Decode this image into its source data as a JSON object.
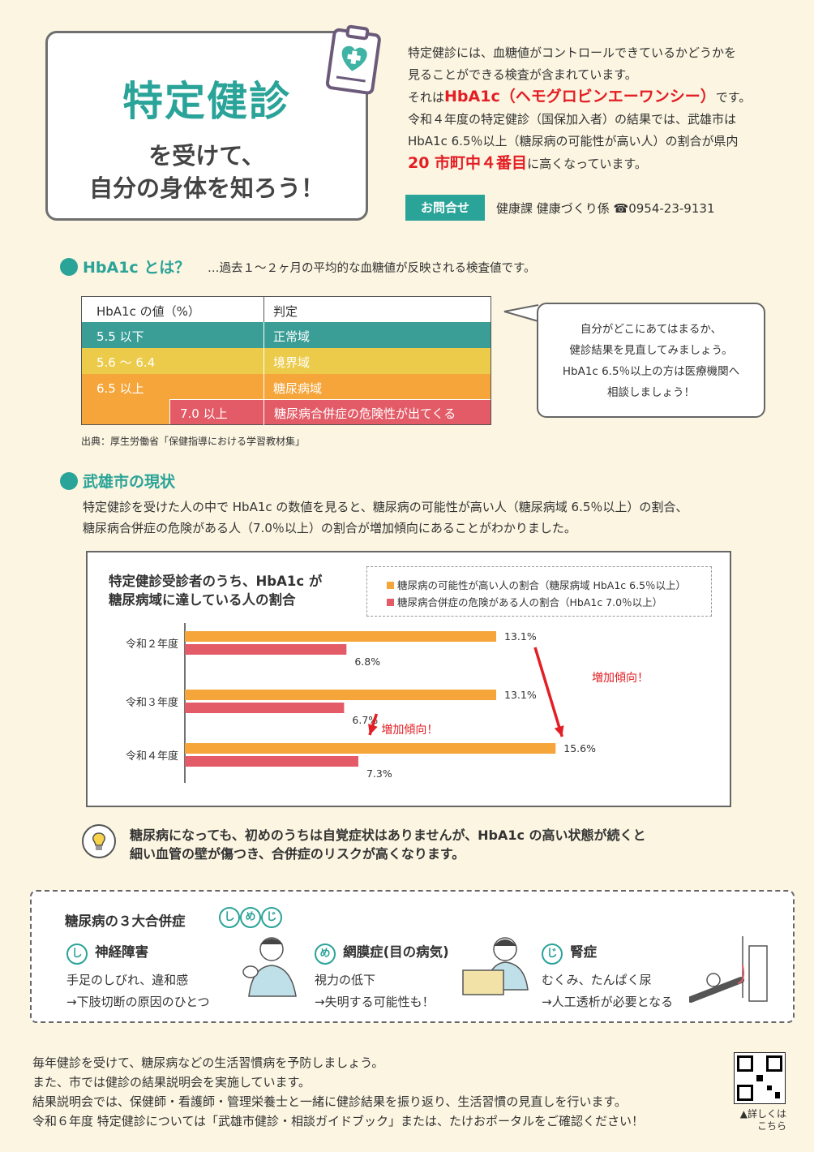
{
  "header": {
    "title_main": "特定健診",
    "title_sub1": "を受けて、",
    "title_sub2": "自分の身体を知ろう！",
    "intro_line1": "特定健診には、血糖値がコントロールできているかどうかを",
    "intro_line2": "見ることができる検査が含まれています。",
    "intro_line3_pre": "それは",
    "intro_line3_red": "HbA1c（ヘモグロビンエーワンシー）",
    "intro_line3_post": "です。",
    "intro_line4": "令和４年度の特定健診（国保加入者）の結果では、武雄市は",
    "intro_line5": "HbA1c 6.5％以上（糖尿病の可能性が高い人）の割合が県内",
    "intro_line6_red": "20 市町中４番目",
    "intro_line6_post": "に高くなっています。",
    "contact_label": "お問合せ",
    "contact_text": "健康課 健康づくり係 ☎0954-23-9131"
  },
  "hba1c": {
    "section_title": "HbA1c とは？",
    "section_desc": "…過去１～２ヶ月の平均的な血糖値が反映される検査値です。",
    "col1": "HbA1c の値（%）",
    "col2": "判定",
    "rows": [
      {
        "value": "5.5 以下",
        "judge": "正常域"
      },
      {
        "value": "5.6 ～ 6.4",
        "judge": "境界域"
      },
      {
        "value": "6.5 以上",
        "judge": "糖尿病域"
      },
      {
        "value": "7.0 以上",
        "judge": "糖尿病合併症の危険性が出てくる"
      }
    ],
    "source": "出典：厚生労働省「保健指導における学習教材集」",
    "bubble1": "自分がどこにあてはまるか、",
    "bubble2": "健診結果を見直してみましょう。",
    "bubble3": "HbA1c 6.5％以上の方は医療機関へ",
    "bubble4": "相談しましょう！",
    "colors": {
      "normal": "#3a9e97",
      "border": "#eccb4a",
      "diabetes": "#f5a53a",
      "danger": "#e35b67"
    }
  },
  "current": {
    "section_title": "武雄市の現状",
    "para1": "特定健診を受けた人の中で HbA1c の数値を見ると、糖尿病の可能性が高い人（糖尿病域 6.5％以上）の割合、",
    "para2": "糖尿病合併症の危険がある人（7.0％以上）の割合が増加傾向にあることがわかりました。"
  },
  "chart_data": {
    "type": "bar",
    "orientation": "horizontal",
    "title_line1": "特定健診受診者のうち、HbA1c が",
    "title_line2": "糖尿病域に達している人の割合",
    "categories": [
      "令和２年度",
      "令和３年度",
      "令和４年度"
    ],
    "series": [
      {
        "name": "糖尿病の可能性が高い人の割合（糖尿病域 HbA1c 6.5％以上）",
        "color": "#f5a53a",
        "values": [
          13.1,
          13.1,
          15.6
        ],
        "labels": [
          "13.1%",
          "13.1%",
          "15.6%"
        ]
      },
      {
        "name": "糖尿病合併症の危険がある人の割合（HbA1c 7.0％以上）",
        "color": "#e35b67",
        "values": [
          6.8,
          6.7,
          7.3
        ],
        "labels": [
          "6.8%",
          "6.7%",
          "7.3%"
        ]
      }
    ],
    "annotations": [
      "増加傾向！",
      "増加傾向！"
    ],
    "xlim": [
      0,
      16
    ]
  },
  "tip": {
    "line1": "糖尿病になっても、初めのうちは自覚症状はありませんが、HbA1c の高い状態が続くと",
    "line2": "細い血管の壁が傷つき、合併症のリスクが高くなります。"
  },
  "complications": {
    "title": "糖尿病の３大合併症",
    "badges": [
      "し",
      "め",
      "じ"
    ],
    "items": [
      {
        "badge": "し",
        "name": "神経障害",
        "desc1": "手足のしびれ、違和感",
        "desc2": "→下肢切断の原因のひとつ"
      },
      {
        "badge": "め",
        "name": "網膜症(目の病気)",
        "desc1": "視力の低下",
        "desc2": "→失明する可能性も！"
      },
      {
        "badge": "じ",
        "name": "腎症",
        "desc1": "むくみ、たんぱく尿",
        "desc2": "→人工透析が必要となる"
      }
    ]
  },
  "footer": {
    "line1": "毎年健診を受けて、糖尿病などの生活習慣病を予防しましょう。",
    "line2": "また、市では健診の結果説明会を実施しています。",
    "line3": "結果説明会では、保健師・看護師・管理栄養士と一緒に健診結果を振り返り、生活習慣の見直しを行います。",
    "line4": "令和６年度 特定健診については「武雄市健診・相談ガイドブック」または、たけおポータルをご確認ください！",
    "qr_label1": "▲詳しくは",
    "qr_label2": "こちら"
  }
}
